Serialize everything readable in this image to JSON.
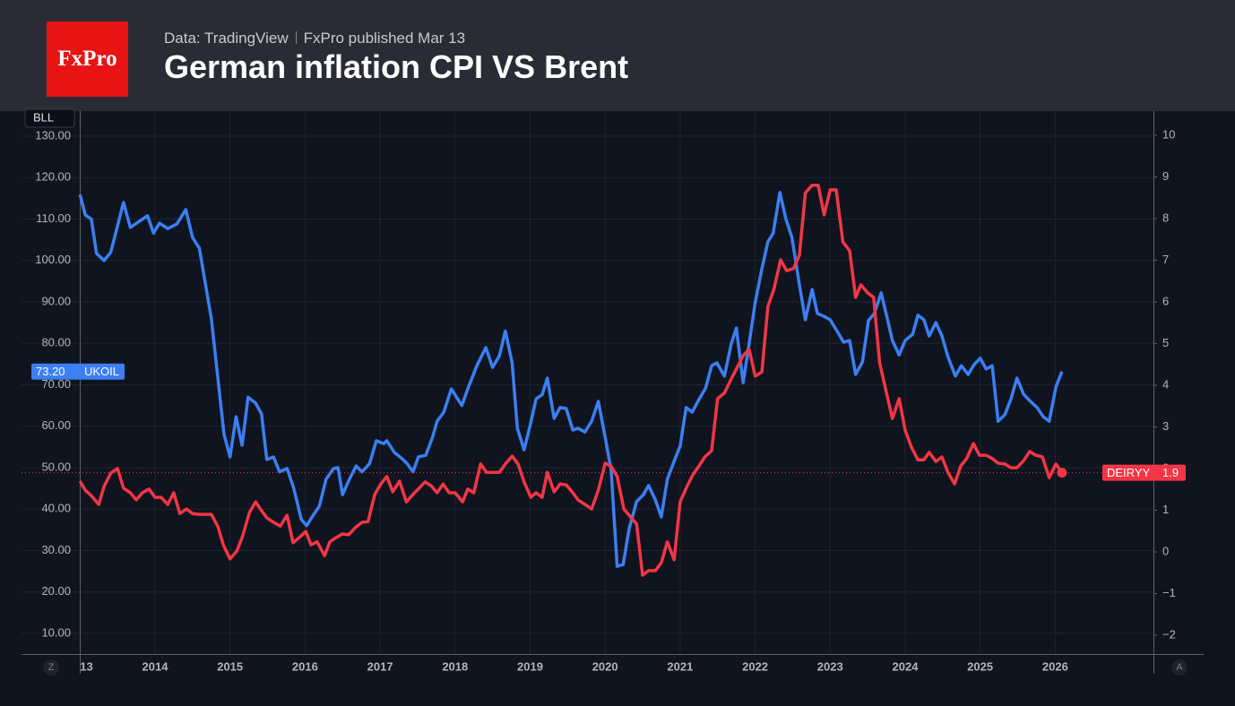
{
  "header": {
    "logo": "FxPro",
    "source": "Data: TradingView",
    "publisher": "FxPro published Mar 13"
  },
  "controls": [
    "Z",
    "A"
  ],
  "chart_data": {
    "type": "line",
    "title": "German inflation CPI VS Brent",
    "y_axis_label": "BLL",
    "xlim": [
      2013,
      2027.31
    ],
    "xticks": [
      {
        "value": 2013,
        "label": "13"
      },
      2014,
      2015,
      2016,
      2017,
      2018,
      2019,
      2020,
      2021,
      2022,
      2023,
      2024,
      2025,
      2026
    ],
    "ylim": [
      10,
      130
    ],
    "yticks": [
      {
        "value": 10,
        "label": "10.00"
      },
      {
        "value": 20,
        "label": "20.00"
      },
      {
        "value": 30,
        "label": "30.00"
      },
      {
        "value": 40,
        "label": "40.00"
      },
      {
        "value": 50,
        "label": "50.00"
      },
      {
        "value": 60,
        "label": "60.00"
      },
      {
        "value": 70,
        "label": "70.00"
      },
      {
        "value": 80,
        "label": "80.00"
      },
      {
        "value": 90,
        "label": "90.00"
      },
      {
        "value": 100,
        "label": "100.00"
      },
      {
        "value": 110,
        "label": "110.00"
      },
      {
        "value": 120,
        "label": "120.00"
      },
      {
        "value": 130,
        "label": "130.00"
      }
    ],
    "y2lim": [
      -2,
      10
    ],
    "y2ticks": [
      {
        "value": -2,
        "label": "−2"
      },
      {
        "value": -1,
        "label": "−1"
      },
      0,
      1,
      2,
      3,
      4,
      5,
      6,
      7,
      8,
      9,
      10
    ],
    "grid": true,
    "series": [
      {
        "name": "UKOIL",
        "color": "#3b7ff2",
        "last_label": "73.20",
        "x": [
          2013.0,
          2013.07,
          2013.15,
          2013.22,
          2013.32,
          2013.41,
          2013.58,
          2013.67,
          2013.9,
          2013.98,
          2014.06,
          2014.17,
          2014.29,
          2014.41,
          2014.5,
          2014.59,
          2014.75,
          2014.92,
          2015.0,
          2015.08,
          2015.16,
          2015.24,
          2015.34,
          2015.42,
          2015.49,
          2015.58,
          2015.66,
          2015.76,
          2015.85,
          2015.95,
          2016.02,
          2016.09,
          2016.19,
          2016.28,
          2016.38,
          2016.44,
          2016.5,
          2016.59,
          2016.68,
          2016.76,
          2016.86,
          2016.95,
          2017.05,
          2017.09,
          2017.19,
          2017.29,
          2017.36,
          2017.44,
          2017.51,
          2017.61,
          2017.7,
          2017.76,
          2017.85,
          2017.95,
          2018.09,
          2018.18,
          2018.29,
          2018.41,
          2018.5,
          2018.59,
          2018.67,
          2018.76,
          2018.83,
          2018.92,
          2019.0,
          2019.08,
          2019.16,
          2019.23,
          2019.32,
          2019.4,
          2019.48,
          2019.57,
          2019.64,
          2019.73,
          2019.82,
          2019.91,
          2020.0,
          2020.08,
          2020.16,
          2020.24,
          2020.32,
          2020.42,
          2020.51,
          2020.58,
          2020.67,
          2020.75,
          2020.83,
          2020.93,
          2021.0,
          2021.08,
          2021.16,
          2021.25,
          2021.34,
          2021.42,
          2021.49,
          2021.59,
          2021.68,
          2021.75,
          2021.84,
          2021.92,
          2022.0,
          2022.09,
          2022.17,
          2022.24,
          2022.33,
          2022.41,
          2022.49,
          2022.59,
          2022.67,
          2022.76,
          2022.83,
          2022.92,
          2023.0,
          2023.08,
          2023.18,
          2023.26,
          2023.34,
          2023.43,
          2023.51,
          2023.59,
          2023.68,
          2023.76,
          2023.83,
          2023.92,
          2024.0,
          2024.1,
          2024.17,
          2024.25,
          2024.32,
          2024.41,
          2024.49,
          2024.57,
          2024.67,
          2024.75,
          2024.84,
          2024.92,
          2025.0,
          2025.08,
          2025.16,
          2025.24,
          2025.33,
          2025.41,
          2025.49,
          2025.58,
          2025.67,
          2025.76,
          2025.84,
          2025.92,
          2026.01,
          2026.09
        ],
        "values": [
          115.9,
          111,
          110,
          101.7,
          100,
          102,
          114,
          108,
          110.8,
          106.6,
          109,
          107.7,
          108.8,
          112.3,
          105.6,
          103,
          86,
          58,
          52.6,
          62.3,
          55.4,
          67,
          65.6,
          63,
          52,
          52.6,
          49,
          49.8,
          45,
          37.5,
          36,
          38,
          40.7,
          47.2,
          49.8,
          50,
          43.5,
          47.2,
          50.4,
          49,
          51,
          56.5,
          55.8,
          56.5,
          53.7,
          52.2,
          51,
          49,
          52.6,
          53,
          57.4,
          61.2,
          63.4,
          69,
          65,
          69.5,
          74.6,
          79,
          74.2,
          77,
          83,
          75.3,
          59.5,
          54.3,
          60.2,
          66.6,
          67.6,
          71.6,
          61.9,
          64.5,
          64.3,
          59.1,
          59.5,
          58.6,
          61.2,
          66,
          57.4,
          49.4,
          26.2,
          26.6,
          35.3,
          41.8,
          43.5,
          45.7,
          42.2,
          38.1,
          47.2,
          52,
          55.2,
          64.5,
          63.4,
          66.4,
          69.2,
          74.6,
          75.3,
          72.1,
          79.8,
          83.7,
          70.5,
          80,
          89.8,
          98,
          104.5,
          106.6,
          116.4,
          110,
          105.6,
          94.1,
          85.7,
          93,
          87.2,
          86.5,
          85.7,
          83.3,
          80.3,
          80.7,
          72.5,
          75.5,
          85.5,
          87.2,
          92.2,
          86.1,
          80.7,
          77.2,
          80.7,
          82.2,
          86.8,
          85.7,
          81.8,
          85,
          81.8,
          76.8,
          72.1,
          74.6,
          72.5,
          74.9,
          76.4,
          73.8,
          74.6,
          61.2,
          62.8,
          66.6,
          71.6,
          67.7,
          66,
          64.5,
          62.3,
          61.2,
          69.5,
          73.2
        ]
      },
      {
        "name": "DEIRYY",
        "color": "#f23645",
        "axis": "y2",
        "x": [
          2013.0,
          2013.07,
          2013.15,
          2013.25,
          2013.32,
          2013.41,
          2013.5,
          2013.58,
          2013.67,
          2013.75,
          2013.83,
          2013.92,
          2014.0,
          2014.08,
          2014.17,
          2014.25,
          2014.33,
          2014.42,
          2014.5,
          2014.59,
          2014.75,
          2014.84,
          2014.91,
          2015.0,
          2015.09,
          2015.16,
          2015.26,
          2015.34,
          2015.42,
          2015.49,
          2015.58,
          2015.67,
          2015.76,
          2015.84,
          2015.92,
          2016.01,
          2016.08,
          2016.16,
          2016.26,
          2016.33,
          2016.41,
          2016.5,
          2016.58,
          2016.68,
          2016.76,
          2016.84,
          2016.93,
          2017.01,
          2017.09,
          2017.17,
          2017.26,
          2017.35,
          2017.44,
          2017.51,
          2017.6,
          2017.68,
          2017.76,
          2017.84,
          2017.92,
          2018.0,
          2018.1,
          2018.17,
          2018.25,
          2018.34,
          2018.42,
          2018.59,
          2018.67,
          2018.76,
          2018.84,
          2018.92,
          2019.01,
          2019.08,
          2019.16,
          2019.23,
          2019.32,
          2019.4,
          2019.48,
          2019.57,
          2019.64,
          2019.73,
          2019.82,
          2019.91,
          2020.0,
          2020.08,
          2020.16,
          2020.25,
          2020.33,
          2020.42,
          2020.5,
          2020.58,
          2020.67,
          2020.75,
          2020.83,
          2020.92,
          2021.0,
          2021.08,
          2021.17,
          2021.25,
          2021.33,
          2021.42,
          2021.5,
          2021.59,
          2021.67,
          2021.75,
          2021.84,
          2021.92,
          2022.0,
          2022.09,
          2022.17,
          2022.25,
          2022.34,
          2022.42,
          2022.51,
          2022.59,
          2022.67,
          2022.76,
          2022.84,
          2022.92,
          2023.0,
          2023.08,
          2023.17,
          2023.26,
          2023.34,
          2023.41,
          2023.5,
          2023.58,
          2023.66,
          2023.75,
          2023.83,
          2023.92,
          2024.0,
          2024.08,
          2024.17,
          2024.25,
          2024.32,
          2024.41,
          2024.49,
          2024.57,
          2024.66,
          2024.74,
          2024.82,
          2024.91,
          2024.99,
          2025.08,
          2025.16,
          2025.24,
          2025.33,
          2025.41,
          2025.49,
          2025.58,
          2025.66,
          2025.74,
          2025.83,
          2025.92,
          2026.01,
          2026.09
        ],
        "values": [
          1.7,
          1.48,
          1.35,
          1.14,
          1.57,
          1.89,
          2,
          1.53,
          1.42,
          1.25,
          1.42,
          1.51,
          1.31,
          1.31,
          1.14,
          1.42,
          0.92,
          1.03,
          0.92,
          0.9,
          0.9,
          0.6,
          0.17,
          -0.17,
          0.02,
          0.34,
          0.95,
          1.2,
          0.99,
          0.82,
          0.71,
          0.62,
          0.88,
          0.22,
          0.34,
          0.49,
          0.17,
          0.24,
          -0.09,
          0.24,
          0.34,
          0.43,
          0.41,
          0.6,
          0.71,
          0.73,
          1.38,
          1.63,
          1.81,
          1.44,
          1.7,
          1.2,
          1.38,
          1.51,
          1.68,
          1.59,
          1.42,
          1.63,
          1.42,
          1.42,
          1.2,
          1.51,
          1.42,
          2.11,
          1.91,
          1.91,
          2.11,
          2.3,
          2.11,
          1.68,
          1.31,
          1.42,
          1.31,
          1.91,
          1.44,
          1.63,
          1.61,
          1.42,
          1.25,
          1.14,
          1.03,
          1.48,
          2.13,
          2.06,
          1.81,
          1.03,
          0.86,
          0.67,
          -0.56,
          -0.45,
          -0.45,
          -0.26,
          0.24,
          -0.19,
          1.2,
          1.53,
          1.85,
          2.06,
          2.28,
          2.43,
          3.68,
          3.81,
          4.11,
          4.39,
          4.71,
          4.86,
          4.22,
          4.32,
          5.89,
          6.3,
          7.01,
          6.75,
          6.8,
          7.12,
          8.62,
          8.8,
          8.8,
          8.09,
          8.69,
          8.69,
          7.44,
          7.23,
          6.11,
          6.41,
          6.22,
          6.11,
          4.54,
          3.83,
          3.2,
          3.68,
          2.92,
          2.53,
          2.21,
          2.21,
          2.39,
          2.17,
          2.28,
          1.91,
          1.63,
          2.06,
          2.24,
          2.6,
          2.32,
          2.32,
          2.24,
          2.13,
          2.11,
          2.02,
          2.02,
          2.19,
          2.41,
          2.32,
          2.28,
          1.78,
          2.11,
          1.9
        ]
      }
    ]
  }
}
